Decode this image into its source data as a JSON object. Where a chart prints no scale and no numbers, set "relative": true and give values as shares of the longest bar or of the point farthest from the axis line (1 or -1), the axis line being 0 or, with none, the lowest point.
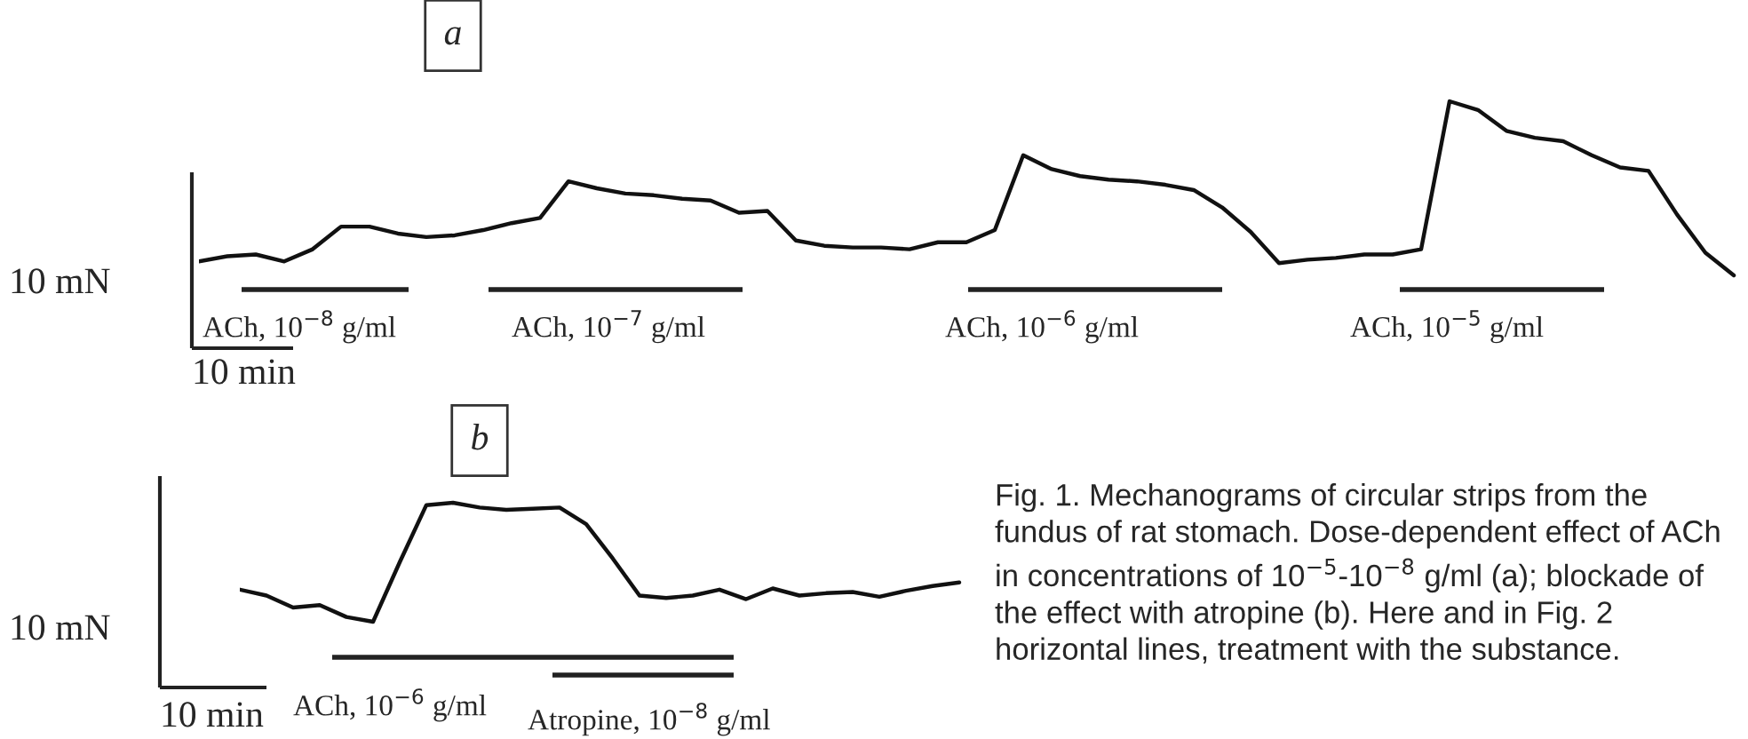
{
  "chart_data": [
    {
      "type": "line",
      "title": "a",
      "relative": true,
      "marker": "none",
      "line_style": "solid",
      "categories": [
        null,
        null,
        null,
        null,
        null,
        null,
        null,
        null,
        null,
        null,
        null,
        null,
        null,
        null,
        null,
        null,
        null,
        null,
        null,
        null,
        null,
        null,
        null,
        null,
        null,
        null,
        null,
        null,
        null,
        null,
        null,
        null,
        null,
        null,
        null,
        null,
        null,
        null,
        null,
        null,
        null,
        null,
        null,
        null,
        null,
        null,
        null,
        null,
        null,
        null,
        null,
        null,
        null,
        null,
        null
      ],
      "series": [
        {
          "color": "#111111",
          "values": [
            0.08,
            0.11,
            0.12,
            0.08,
            0.15,
            0.28,
            0.28,
            0.24,
            0.22,
            0.23,
            0.26,
            0.3,
            0.33,
            0.54,
            0.5,
            0.47,
            0.46,
            0.44,
            0.43,
            0.36,
            0.37,
            0.2,
            0.17,
            0.16,
            0.16,
            0.15,
            0.19,
            0.19,
            0.26,
            0.69,
            0.61,
            0.57,
            0.55,
            0.54,
            0.52,
            0.49,
            0.39,
            0.25,
            0.07,
            0.09,
            0.1,
            0.12,
            0.12,
            0.15,
            1.0,
            0.95,
            0.83,
            0.79,
            0.77,
            0.69,
            0.62,
            0.6,
            0.35,
            0.13,
            0
          ]
        }
      ],
      "annotations": [
        "10 mN",
        "10 min",
        "ACh, 10$^{−8}$ g/ml",
        "ACh, 10$^{−7}$ g/ml",
        "ACh, 10$^{−6}$ g/ml",
        "ACh, 10$^{−5}$ g/ml"
      ]
    },
    {
      "type": "line",
      "title": "b",
      "relative": true,
      "marker": "none",
      "line_style": "solid",
      "categories": [
        null,
        null,
        null,
        null,
        null,
        null,
        null,
        null,
        null,
        null,
        null,
        null,
        null,
        null,
        null,
        null,
        null,
        null,
        null,
        null,
        null,
        null,
        null,
        null,
        null,
        null,
        null,
        null
      ],
      "series": [
        {
          "color": "#111111",
          "values": [
            0.27,
            0.22,
            0.12,
            0.14,
            0.04,
            0,
            0.5,
            0.98,
            1,
            0.96,
            0.94,
            0.95,
            0.96,
            0.82,
            0.53,
            0.22,
            0.2,
            0.22,
            0.27,
            0.19,
            0.28,
            0.22,
            0.24,
            0.25,
            0.21,
            0.26,
            0.3,
            0.33
          ]
        }
      ],
      "annotations": [
        "10 mN",
        "10 min",
        "ACh, 10$^{−6}$ g/ml",
        "Atropine, 10$^{−8}$ g/ml",
        "Fig. 1. Mechanograms of circular strips from the fundus of rat stomach. Dose-dependent effect of ACh in concentrations of 10$^{−5}$-10$^{−8}$ g/ml (a); blockade of the effect with atropine (b). Here and in Fig. 2 horizontal lines, treatment with the substance."
      ]
    }
  ]
}
